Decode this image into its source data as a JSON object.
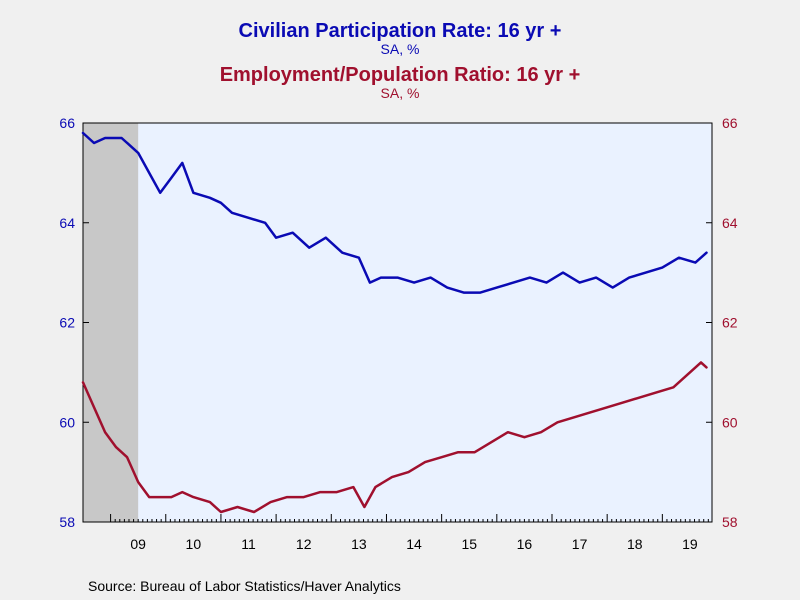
{
  "titles": {
    "title1": "Civilian Participation Rate: 16 yr +",
    "subtitle1": "SA, %",
    "title2": "Employment/Population Ratio: 16 yr +",
    "subtitle2": "SA, %"
  },
  "source": "Source:  Bureau of Labor Statistics/Haver Analytics",
  "colors": {
    "background": "#f0f0f0",
    "plot_background": "#eaf2ff",
    "recession_shade": "#c8c8c8",
    "blue_series": "#0a0ab4",
    "red_series": "#a0102e"
  },
  "chart_data": {
    "type": "line",
    "x_unit": "year",
    "xlim": [
      2008.5,
      2019.9
    ],
    "ylim_left": [
      58,
      66
    ],
    "ylim_right": [
      58,
      66
    ],
    "y_ticks_left": [
      "66",
      "64",
      "62",
      "60",
      "58"
    ],
    "y_ticks_right": [
      "66",
      "64",
      "62",
      "60",
      "58"
    ],
    "x_tick_labels": [
      "09",
      "10",
      "11",
      "12",
      "13",
      "14",
      "15",
      "16",
      "17",
      "18",
      "19"
    ],
    "grid": false,
    "recession_band": [
      2008.5,
      2009.5
    ],
    "series": [
      {
        "name": "Civilian Participation Rate: 16 yr +",
        "axis": "left",
        "color": "#0a0ab4",
        "points": [
          [
            2008.5,
            65.8
          ],
          [
            2008.7,
            65.6
          ],
          [
            2008.9,
            65.7
          ],
          [
            2009.2,
            65.7
          ],
          [
            2009.5,
            65.4
          ],
          [
            2009.7,
            65.0
          ],
          [
            2009.9,
            64.6
          ],
          [
            2010.1,
            64.9
          ],
          [
            2010.3,
            65.2
          ],
          [
            2010.5,
            64.6
          ],
          [
            2010.8,
            64.5
          ],
          [
            2011.0,
            64.4
          ],
          [
            2011.2,
            64.2
          ],
          [
            2011.5,
            64.1
          ],
          [
            2011.8,
            64.0
          ],
          [
            2012.0,
            63.7
          ],
          [
            2012.3,
            63.8
          ],
          [
            2012.6,
            63.5
          ],
          [
            2012.9,
            63.7
          ],
          [
            2013.2,
            63.4
          ],
          [
            2013.5,
            63.3
          ],
          [
            2013.7,
            62.8
          ],
          [
            2013.9,
            62.9
          ],
          [
            2014.2,
            62.9
          ],
          [
            2014.5,
            62.8
          ],
          [
            2014.8,
            62.9
          ],
          [
            2015.1,
            62.7
          ],
          [
            2015.4,
            62.6
          ],
          [
            2015.7,
            62.6
          ],
          [
            2016.0,
            62.7
          ],
          [
            2016.3,
            62.8
          ],
          [
            2016.6,
            62.9
          ],
          [
            2016.9,
            62.8
          ],
          [
            2017.2,
            63.0
          ],
          [
            2017.5,
            62.8
          ],
          [
            2017.8,
            62.9
          ],
          [
            2018.1,
            62.7
          ],
          [
            2018.4,
            62.9
          ],
          [
            2018.7,
            63.0
          ],
          [
            2019.0,
            63.1
          ],
          [
            2019.3,
            63.3
          ],
          [
            2019.6,
            63.2
          ],
          [
            2019.8,
            63.4
          ]
        ]
      },
      {
        "name": "Employment/Population Ratio: 16 yr +",
        "axis": "right",
        "color": "#a0102e",
        "points": [
          [
            2008.5,
            60.8
          ],
          [
            2008.7,
            60.3
          ],
          [
            2008.9,
            59.8
          ],
          [
            2009.1,
            59.5
          ],
          [
            2009.3,
            59.3
          ],
          [
            2009.5,
            58.8
          ],
          [
            2009.7,
            58.5
          ],
          [
            2009.9,
            58.5
          ],
          [
            2010.1,
            58.5
          ],
          [
            2010.3,
            58.6
          ],
          [
            2010.5,
            58.5
          ],
          [
            2010.8,
            58.4
          ],
          [
            2011.0,
            58.2
          ],
          [
            2011.3,
            58.3
          ],
          [
            2011.6,
            58.2
          ],
          [
            2011.9,
            58.4
          ],
          [
            2012.2,
            58.5
          ],
          [
            2012.5,
            58.5
          ],
          [
            2012.8,
            58.6
          ],
          [
            2013.1,
            58.6
          ],
          [
            2013.4,
            58.7
          ],
          [
            2013.6,
            58.3
          ],
          [
            2013.8,
            58.7
          ],
          [
            2014.1,
            58.9
          ],
          [
            2014.4,
            59.0
          ],
          [
            2014.7,
            59.2
          ],
          [
            2015.0,
            59.3
          ],
          [
            2015.3,
            59.4
          ],
          [
            2015.6,
            59.4
          ],
          [
            2015.9,
            59.6
          ],
          [
            2016.2,
            59.8
          ],
          [
            2016.5,
            59.7
          ],
          [
            2016.8,
            59.8
          ],
          [
            2017.1,
            60.0
          ],
          [
            2017.4,
            60.1
          ],
          [
            2017.7,
            60.2
          ],
          [
            2018.0,
            60.3
          ],
          [
            2018.3,
            60.4
          ],
          [
            2018.6,
            60.5
          ],
          [
            2018.9,
            60.6
          ],
          [
            2019.2,
            60.7
          ],
          [
            2019.5,
            61.0
          ],
          [
            2019.7,
            61.2
          ],
          [
            2019.8,
            61.1
          ]
        ]
      }
    ]
  }
}
